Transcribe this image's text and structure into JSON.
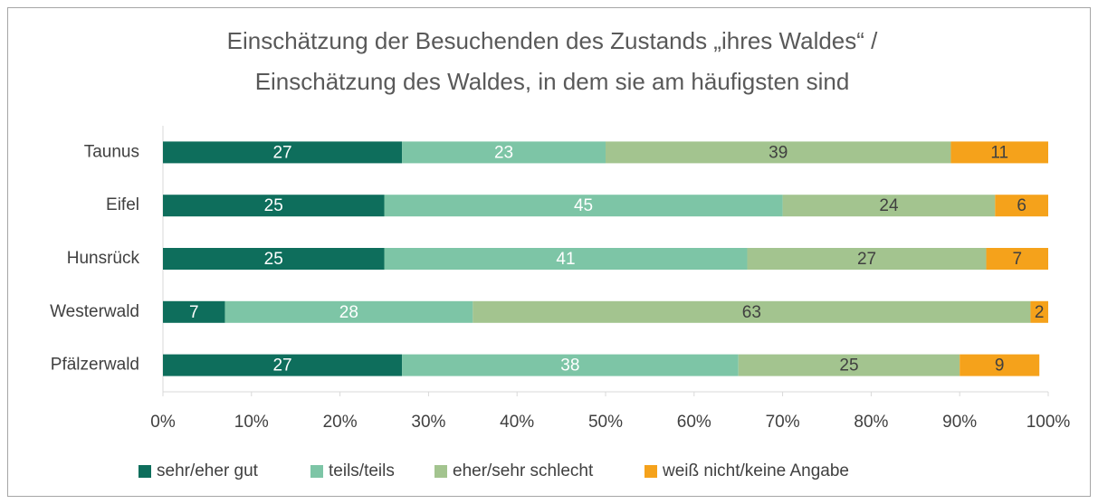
{
  "chart_data": {
    "type": "stacked_barh",
    "title": [
      "Einschätzung der Besuchenden des Zustands „ihres Waldes“ /",
      "Einschätzung des Waldes, in dem sie am häufigsten sind"
    ],
    "categories": [
      "Taunus",
      "Eifel",
      "Hunsrück",
      "Westerwald",
      "Pfälzerwald"
    ],
    "series": [
      {
        "name": "sehr/eher gut",
        "color": "#0e6e5c",
        "label_color": "#ffffff",
        "values": [
          27,
          25,
          25,
          7,
          27
        ]
      },
      {
        "name": "teils/teils",
        "color": "#7dc5a6",
        "label_color": "#ffffff",
        "values": [
          23,
          45,
          41,
          28,
          38
        ]
      },
      {
        "name": "eher/sehr schlecht",
        "color": "#a3c48f",
        "label_color": "#404040",
        "values": [
          39,
          24,
          27,
          63,
          25
        ]
      },
      {
        "name": "weiß nicht/keine Angabe",
        "color": "#f5a21b",
        "label_color": "#404040",
        "values": [
          11,
          6,
          7,
          2,
          9
        ]
      }
    ],
    "xlim": [
      0,
      100
    ],
    "xticks": [
      {
        "value": 0,
        "label": "0%"
      },
      {
        "value": 10,
        "label": "10%"
      },
      {
        "value": 20,
        "label": "20%"
      },
      {
        "value": 30,
        "label": "30%"
      },
      {
        "value": 40,
        "label": "40%"
      },
      {
        "value": 50,
        "label": "50%"
      },
      {
        "value": 60,
        "label": "60%"
      },
      {
        "value": 70,
        "label": "70%"
      },
      {
        "value": 80,
        "label": "80%"
      },
      {
        "value": 90,
        "label": "90%"
      },
      {
        "value": 100,
        "label": "100%"
      }
    ],
    "legend": "bottom"
  }
}
